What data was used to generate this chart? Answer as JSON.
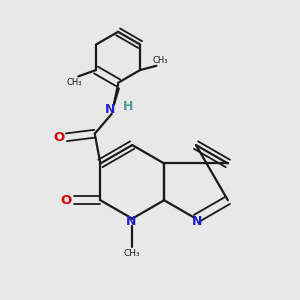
{
  "background_color": "#e8e8e8",
  "bond_color": "#1a1a1a",
  "nitrogen_color": "#2222cc",
  "oxygen_color": "#cc0000",
  "nh_n_color": "#2222cc",
  "nh_h_color": "#4a9a9a",
  "figsize": [
    3.0,
    3.0
  ],
  "dpi": 100,
  "xlim": [
    -2.0,
    2.2
  ],
  "ylim": [
    -2.0,
    2.2
  ]
}
